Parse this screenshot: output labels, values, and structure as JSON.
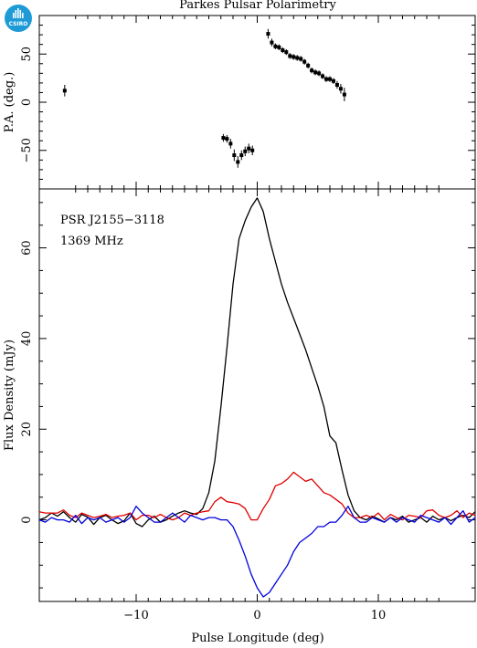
{
  "logo": {
    "text": "CSIRO",
    "color": "#1e9bd7"
  },
  "chart_data": [
    {
      "type": "scatter",
      "title": "Parkes Pulsar Polarimetry",
      "xlabel": "",
      "ylabel": "P.A. (deg.)",
      "xlim": [
        -18,
        18
      ],
      "ylim": [
        -90,
        90
      ],
      "y_ticks": [
        -50,
        0,
        50
      ],
      "series": [
        {
          "color": "#000000",
          "points": [
            {
              "x": -15.9,
              "y": 12,
              "err": 6
            },
            {
              "x": -2.8,
              "y": -37,
              "err": 4
            },
            {
              "x": -2.5,
              "y": -38,
              "err": 4
            },
            {
              "x": -2.2,
              "y": -43,
              "err": 5
            },
            {
              "x": -1.9,
              "y": -55,
              "err": 6
            },
            {
              "x": -1.6,
              "y": -62,
              "err": 6
            },
            {
              "x": -1.3,
              "y": -55,
              "err": 5
            },
            {
              "x": -1.0,
              "y": -51,
              "err": 5
            },
            {
              "x": -0.7,
              "y": -48,
              "err": 5
            },
            {
              "x": -0.4,
              "y": -50,
              "err": 5
            },
            {
              "x": 0.9,
              "y": 71,
              "err": 5
            },
            {
              "x": 1.2,
              "y": 62,
              "err": 4
            },
            {
              "x": 1.5,
              "y": 58,
              "err": 3
            },
            {
              "x": 1.8,
              "y": 57,
              "err": 3
            },
            {
              "x": 2.1,
              "y": 54,
              "err": 3
            },
            {
              "x": 2.4,
              "y": 52,
              "err": 3
            },
            {
              "x": 2.7,
              "y": 48,
              "err": 3
            },
            {
              "x": 3.0,
              "y": 47,
              "err": 3
            },
            {
              "x": 3.3,
              "y": 46,
              "err": 3
            },
            {
              "x": 3.6,
              "y": 45,
              "err": 3
            },
            {
              "x": 3.9,
              "y": 42,
              "err": 3
            },
            {
              "x": 4.2,
              "y": 38,
              "err": 3
            },
            {
              "x": 4.5,
              "y": 33,
              "err": 3
            },
            {
              "x": 4.8,
              "y": 31,
              "err": 3
            },
            {
              "x": 5.1,
              "y": 30,
              "err": 3
            },
            {
              "x": 5.4,
              "y": 27,
              "err": 3
            },
            {
              "x": 5.7,
              "y": 24,
              "err": 3
            },
            {
              "x": 6.0,
              "y": 24,
              "err": 3
            },
            {
              "x": 6.3,
              "y": 22,
              "err": 3
            },
            {
              "x": 6.6,
              "y": 18,
              "err": 4
            },
            {
              "x": 6.9,
              "y": 14,
              "err": 5
            },
            {
              "x": 7.2,
              "y": 8,
              "err": 7
            }
          ]
        }
      ]
    },
    {
      "type": "line",
      "title": "",
      "xlabel": "Pulse Longitude (deg)",
      "ylabel": "Flux Density (mJy)",
      "xlim": [
        -18,
        18
      ],
      "ylim": [
        -18,
        73
      ],
      "x_ticks": [
        -10,
        0,
        10
      ],
      "y_ticks": [
        0,
        20,
        40,
        60
      ],
      "annotations": [
        "PSR J2155−3118",
        "1369 MHz"
      ],
      "x": [
        -18.0,
        -17.5,
        -17.0,
        -16.5,
        -16.0,
        -15.5,
        -15.0,
        -14.5,
        -14.0,
        -13.5,
        -13.0,
        -12.5,
        -12.0,
        -11.5,
        -11.0,
        -10.5,
        -10.0,
        -9.5,
        -9.0,
        -8.5,
        -8.0,
        -7.5,
        -7.0,
        -6.5,
        -6.0,
        -5.5,
        -5.0,
        -4.5,
        -4.0,
        -3.5,
        -3.0,
        -2.5,
        -2.0,
        -1.5,
        -1.0,
        -0.5,
        0.0,
        0.5,
        1.0,
        1.5,
        2.0,
        2.5,
        3.0,
        3.5,
        4.0,
        4.5,
        5.0,
        5.5,
        6.0,
        6.5,
        7.0,
        7.5,
        8.0,
        8.5,
        9.0,
        9.5,
        10.0,
        10.5,
        11.0,
        11.5,
        12.0,
        12.5,
        13.0,
        13.5,
        14.0,
        14.5,
        15.0,
        15.5,
        16.0,
        16.5,
        17.0,
        17.5,
        18.0
      ],
      "series": [
        {
          "color": "#000000",
          "values": [
            0.0,
            0.5,
            1.5,
            0.8,
            1.8,
            0.5,
            -0.5,
            1.2,
            0.6,
            -1.0,
            0.5,
            1.0,
            0.0,
            -0.8,
            -0.2,
            1.5,
            -0.8,
            -1.5,
            0.0,
            0.8,
            -0.5,
            0.0,
            0.8,
            1.5,
            2.0,
            1.5,
            1.2,
            2.5,
            6.0,
            13.0,
            25.0,
            38.0,
            52.0,
            62.0,
            66.0,
            69.0,
            71.0,
            68.0,
            62.0,
            57.0,
            52.0,
            48.0,
            44.5,
            41.0,
            37.5,
            33.5,
            29.5,
            25.0,
            18.5,
            17.0,
            11.0,
            5.5,
            2.0,
            0.5,
            0.0,
            0.8,
            0.2,
            -0.5,
            0.5,
            0.0,
            0.8,
            -0.5,
            0.0,
            0.5,
            -0.5,
            0.8,
            0.0,
            0.5,
            -0.2,
            0.5,
            1.0,
            0.5,
            1.8
          ]
        },
        {
          "color": "#e00000",
          "values": [
            1.8,
            1.5,
            1.5,
            1.5,
            2.2,
            1.0,
            0.5,
            1.5,
            1.0,
            0.5,
            0.8,
            1.2,
            0.5,
            0.8,
            1.0,
            1.5,
            0.0,
            1.0,
            1.0,
            0.5,
            1.2,
            0.5,
            0.0,
            0.5,
            1.5,
            1.0,
            1.5,
            1.8,
            2.0,
            4.0,
            5.0,
            4.0,
            3.8,
            3.5,
            2.5,
            0.0,
            0.0,
            2.5,
            4.5,
            7.5,
            8.0,
            9.0,
            10.5,
            9.5,
            8.5,
            9.0,
            7.5,
            6.0,
            5.5,
            4.5,
            3.5,
            1.5,
            0.5,
            0.5,
            1.0,
            0.5,
            1.5,
            0.0,
            1.2,
            0.5,
            0.0,
            1.0,
            0.8,
            0.5,
            2.0,
            2.2,
            1.0,
            0.5,
            1.0,
            2.0,
            0.5,
            1.5,
            1.0
          ]
        },
        {
          "color": "#0000e0",
          "values": [
            0.0,
            -0.5,
            0.5,
            0.0,
            0.0,
            -0.5,
            1.0,
            -0.8,
            0.5,
            0.0,
            0.5,
            -0.5,
            0.0,
            0.5,
            -0.5,
            0.5,
            3.0,
            1.5,
            0.5,
            -0.5,
            -0.5,
            0.5,
            1.5,
            0.5,
            -0.5,
            1.0,
            0.5,
            0.0,
            0.5,
            0.5,
            0.0,
            0.0,
            -1.5,
            -4.5,
            -8.0,
            -12.0,
            -15.0,
            -17.0,
            -16.0,
            -14.0,
            -12.0,
            -10.0,
            -7.0,
            -5.0,
            -4.0,
            -3.0,
            -1.5,
            -1.5,
            -0.5,
            -0.5,
            1.0,
            3.0,
            0.5,
            -0.5,
            -0.5,
            0.5,
            0.0,
            -0.5,
            0.5,
            -0.5,
            0.5,
            0.0,
            -0.5,
            1.0,
            0.5,
            0.0,
            -0.5,
            0.5,
            -1.0,
            0.5,
            2.0,
            -0.5,
            0.5
          ]
        }
      ]
    }
  ]
}
